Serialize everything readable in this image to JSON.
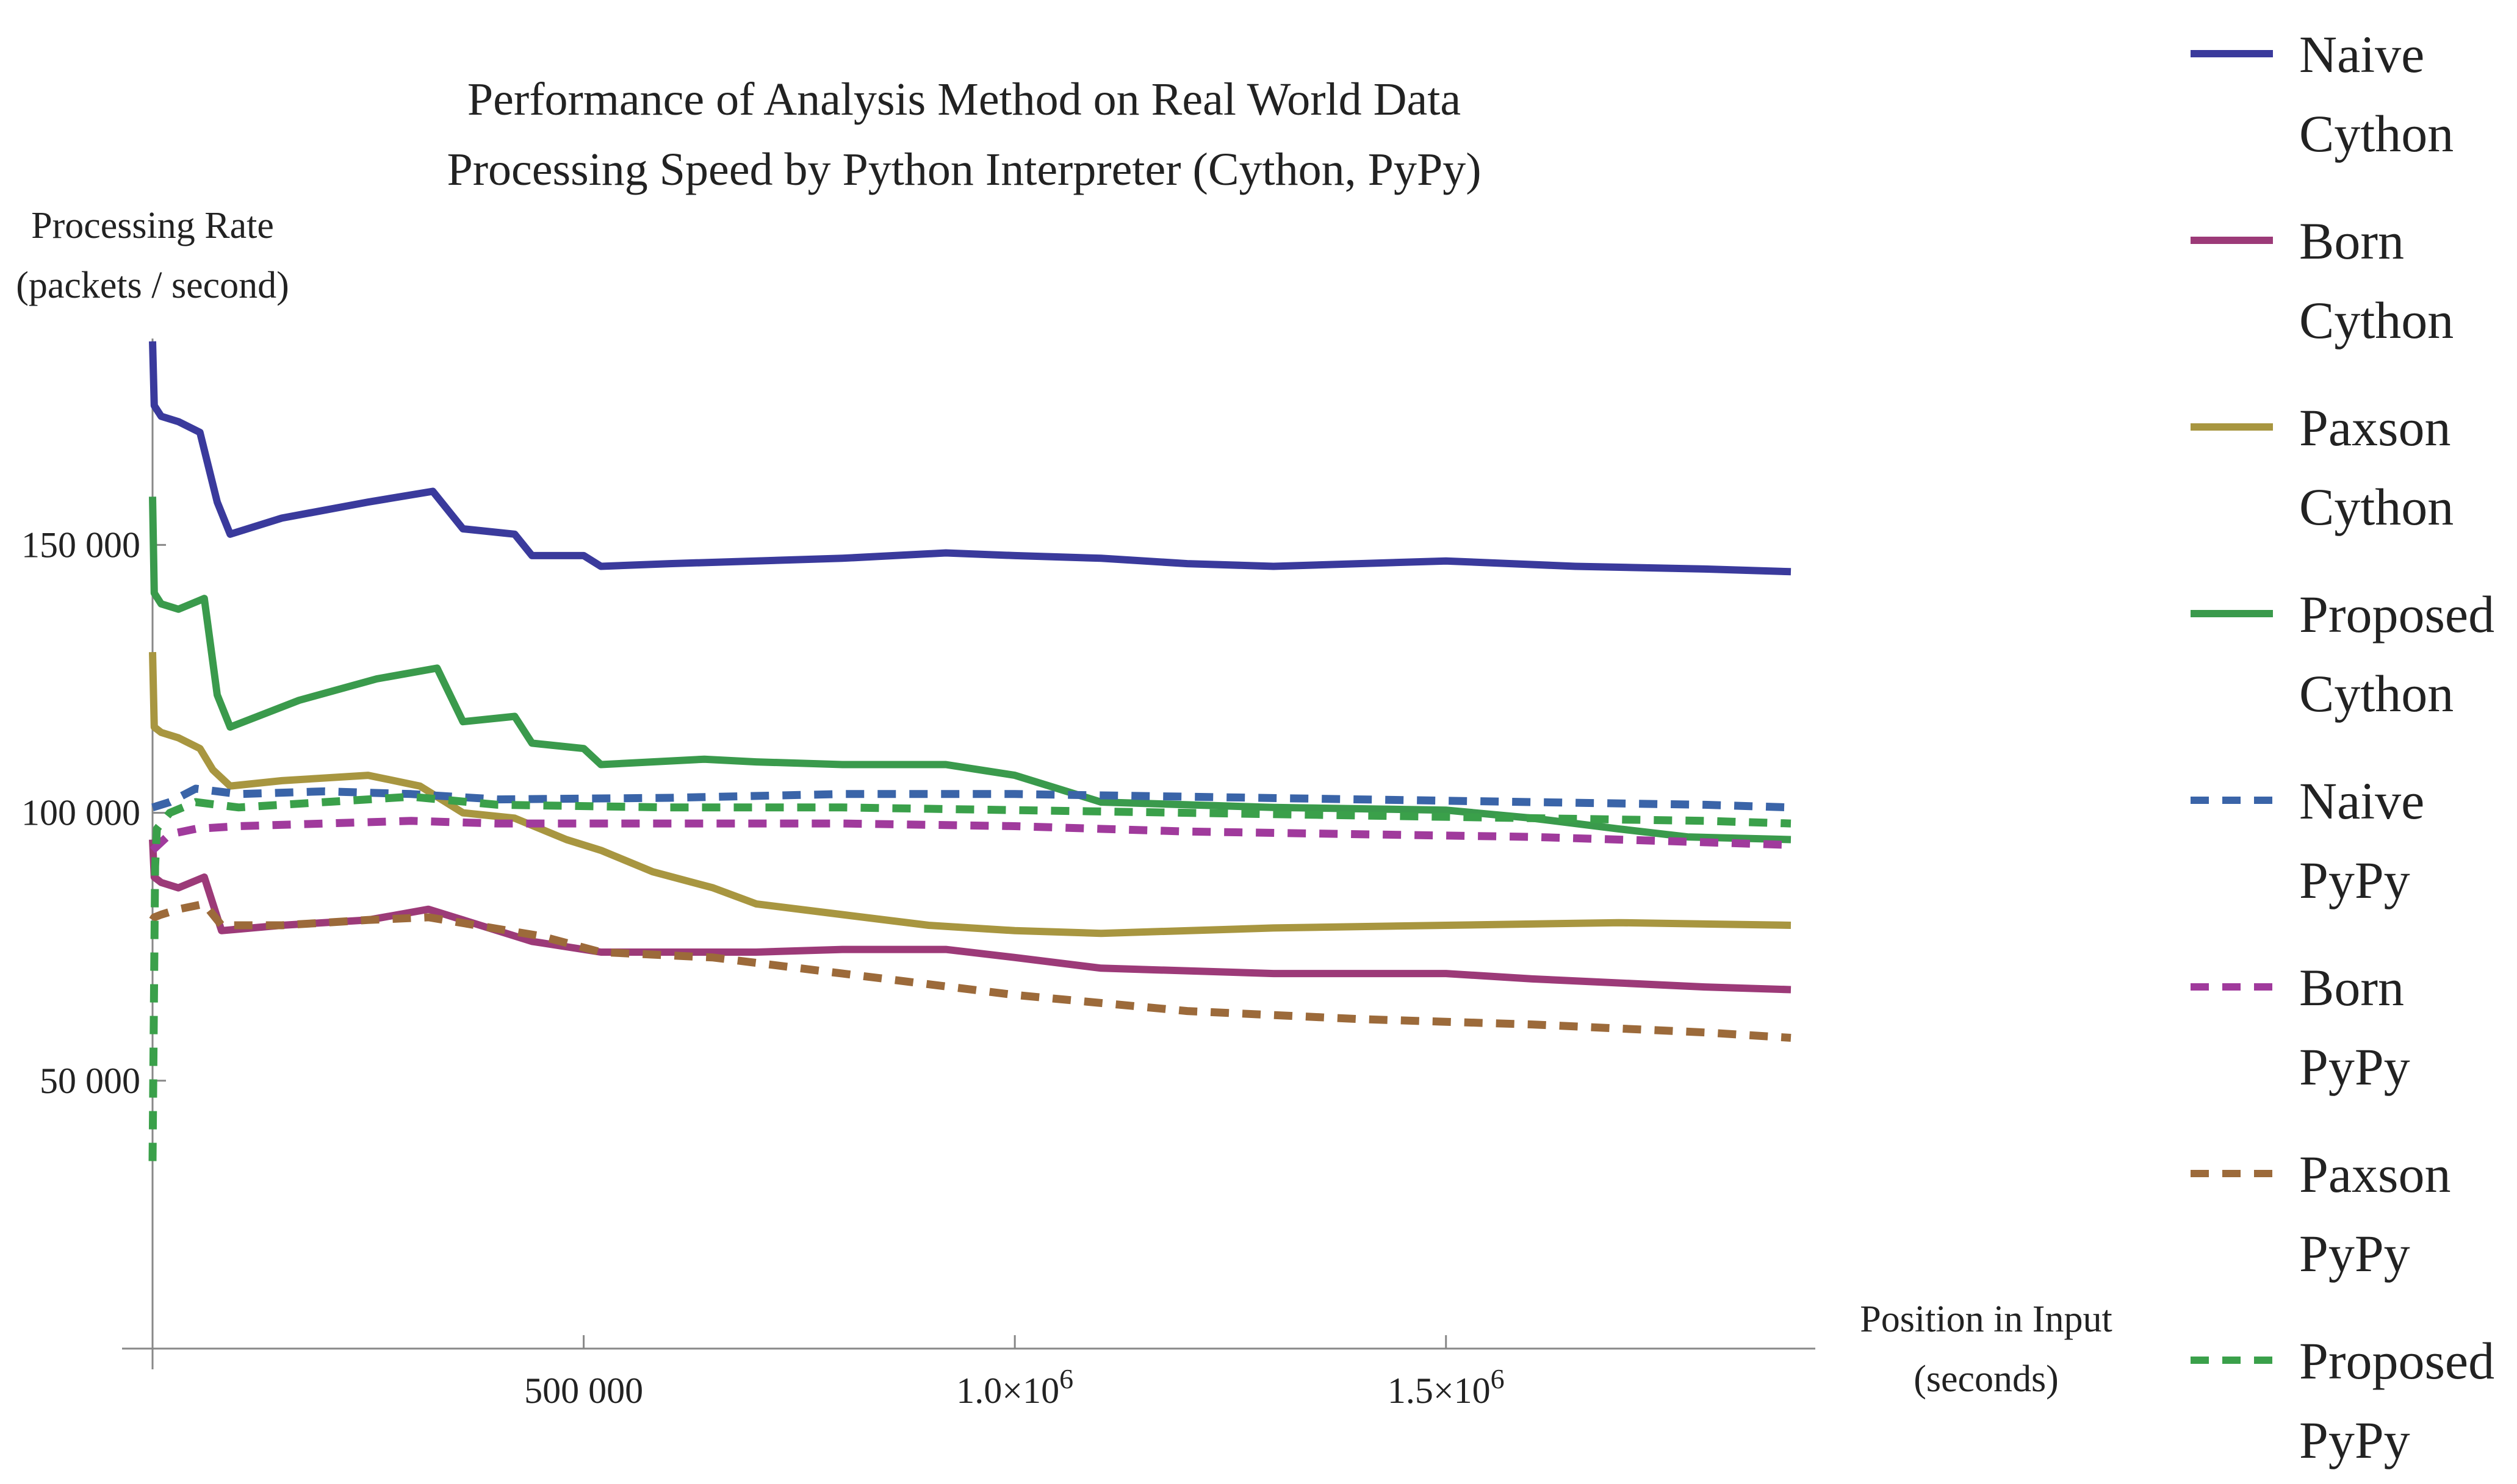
{
  "chart_data": {
    "type": "line",
    "title": "Performance of Analysis Method on Real World Data",
    "subtitle": "Processing Speed by Python Interpreter (Cython, PyPy)",
    "ylabel": [
      "Processing Rate",
      "(packets / second)"
    ],
    "xlabel": [
      "Position in Input",
      "(seconds)"
    ],
    "xlim": [
      0,
      1900000
    ],
    "ylim": [
      0,
      190000
    ],
    "grid": false,
    "legend_position": "right",
    "x_ticks": [
      {
        "value": 500000,
        "label": "500 000",
        "sup": ""
      },
      {
        "value": 1000000,
        "label": "1.0×10",
        "sup": "6"
      },
      {
        "value": 1500000,
        "label": "1.5×10",
        "sup": "6"
      }
    ],
    "y_ticks": [
      {
        "value": 50000,
        "label": "50 000"
      },
      {
        "value": 100000,
        "label": "100 000"
      },
      {
        "value": 150000,
        "label": "150 000"
      }
    ],
    "series": [
      {
        "name": [
          "Naive",
          "Cython"
        ],
        "color": "#3a3a9c",
        "dashed": false,
        "x": [
          0,
          2000,
          10000,
          30000,
          55000,
          75000,
          90000,
          150000,
          250000,
          325000,
          360000,
          420000,
          440000,
          500000,
          520000,
          600000,
          700000,
          800000,
          920000,
          1000000,
          1100000,
          1200000,
          1300000,
          1500000,
          1650000,
          1800000,
          1900000
        ],
        "y": [
          188000,
          176000,
          174000,
          173000,
          171000,
          158000,
          152000,
          155000,
          158000,
          160000,
          153000,
          152000,
          148000,
          148000,
          146000,
          146500,
          147000,
          147500,
          148500,
          148000,
          147500,
          146500,
          146000,
          147000,
          146000,
          145500,
          145000
        ]
      },
      {
        "name": [
          "Born",
          "Cython"
        ],
        "color": "#9c3a78",
        "dashed": false,
        "x": [
          0,
          2000,
          10000,
          30000,
          60000,
          80000,
          150000,
          250000,
          320000,
          400000,
          440000,
          520000,
          700000,
          800000,
          920000,
          1000000,
          1100000,
          1300000,
          1500000,
          1600000,
          1800000,
          1900000
        ],
        "y": [
          95000,
          88000,
          87000,
          86000,
          88000,
          78000,
          79000,
          80000,
          82000,
          78000,
          76000,
          74000,
          74000,
          74500,
          74500,
          73000,
          71000,
          70000,
          70000,
          69000,
          67500,
          67000
        ]
      },
      {
        "name": [
          "Paxson",
          "Cython"
        ],
        "color": "#a89640",
        "dashed": false,
        "x": [
          0,
          2000,
          10000,
          30000,
          55000,
          70000,
          90000,
          150000,
          250000,
          310000,
          360000,
          420000,
          480000,
          520000,
          580000,
          650000,
          700000,
          800000,
          900000,
          1000000,
          1100000,
          1300000,
          1500000,
          1700000,
          1900000
        ],
        "y": [
          130000,
          116000,
          115000,
          114000,
          112000,
          108000,
          105000,
          106000,
          107000,
          105000,
          100000,
          99000,
          95000,
          93000,
          89000,
          86000,
          83000,
          81000,
          79000,
          78000,
          77500,
          78500,
          79000,
          79500,
          79000
        ]
      },
      {
        "name": [
          "Proposed",
          "Cython"
        ],
        "color": "#3a9a4c",
        "dashed": false,
        "x": [
          0,
          2000,
          10000,
          30000,
          60000,
          75000,
          90000,
          170000,
          260000,
          330000,
          360000,
          420000,
          440000,
          500000,
          520000,
          640000,
          700000,
          800000,
          920000,
          1000000,
          1060000,
          1100000,
          1300000,
          1500000,
          1600000,
          1700000,
          1780000,
          1900000
        ],
        "y": [
          159000,
          141000,
          139000,
          138000,
          140000,
          122000,
          116000,
          121000,
          125000,
          127000,
          117000,
          118000,
          113000,
          112000,
          109000,
          110000,
          109500,
          109000,
          109000,
          107000,
          104000,
          102000,
          101000,
          100500,
          99000,
          97000,
          95500,
          95000
        ]
      },
      {
        "name": [
          "Naive",
          "PyPy"
        ],
        "color": "#3a64a8",
        "dashed": true,
        "x": [
          0,
          20000,
          50000,
          100000,
          200000,
          300000,
          400000,
          600000,
          800000,
          1000000,
          1200000,
          1400000,
          1600000,
          1800000,
          1900000
        ],
        "y": [
          101000,
          102000,
          104500,
          103500,
          104000,
          103500,
          102500,
          102800,
          103500,
          103500,
          103000,
          102500,
          102000,
          101500,
          101000
        ]
      },
      {
        "name": [
          "Born",
          "PyPy"
        ],
        "color": "#a03a9c",
        "dashed": true,
        "x": [
          0,
          20000,
          50000,
          100000,
          200000,
          300000,
          400000,
          600000,
          800000,
          1000000,
          1200000,
          1400000,
          1600000,
          1800000,
          1900000
        ],
        "y": [
          93000,
          96000,
          97000,
          97500,
          98000,
          98500,
          98000,
          98000,
          98000,
          97500,
          96500,
          96000,
          95500,
          94500,
          94000
        ]
      },
      {
        "name": [
          "Paxson",
          "PyPy"
        ],
        "color": "#9c6a3a",
        "dashed": true,
        "x": [
          0,
          2000,
          10000,
          30000,
          60000,
          80000,
          150000,
          250000,
          320000,
          450000,
          520000,
          650000,
          800000,
          1000000,
          1200000,
          1400000,
          1600000,
          1800000,
          1900000
        ],
        "y": [
          80000,
          80500,
          81000,
          82000,
          83000,
          79000,
          79000,
          80000,
          80500,
          77000,
          74000,
          73000,
          70000,
          66000,
          63000,
          61500,
          60500,
          59000,
          58000
        ]
      },
      {
        "name": [
          "Proposed",
          "PyPy"
        ],
        "color": "#3aa04a",
        "dashed": true,
        "x": [
          0,
          3000,
          5000,
          20000,
          50000,
          100000,
          200000,
          300000,
          400000,
          600000,
          800000,
          1000000,
          1200000,
          1400000,
          1600000,
          1800000,
          1900000
        ],
        "y": [
          35000,
          90000,
          97000,
          100000,
          102000,
          101000,
          102000,
          103000,
          101500,
          101000,
          101000,
          100500,
          100000,
          99500,
          99000,
          98500,
          98000
        ]
      }
    ]
  }
}
